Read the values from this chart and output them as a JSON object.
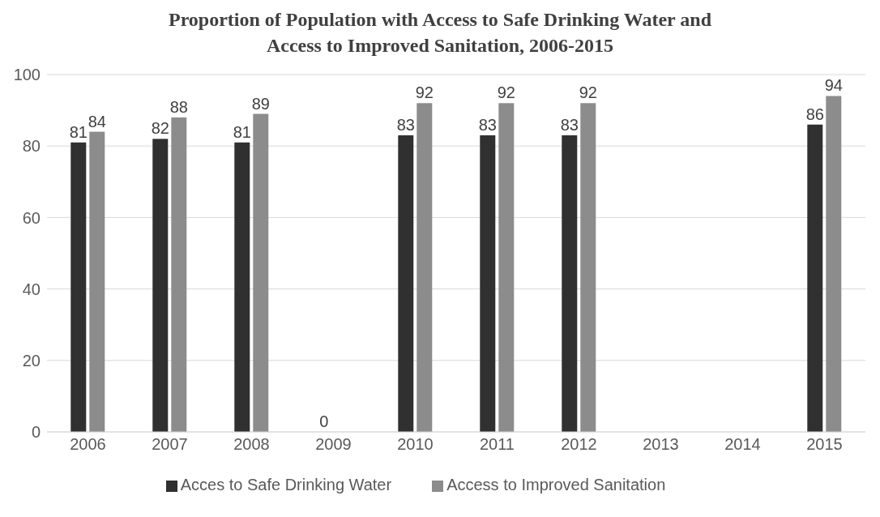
{
  "chart_data": {
    "type": "bar",
    "title": "Proportion of Population with Access to Safe Drinking Water and Access to Improved Sanitation, 2006-2015",
    "categories": [
      "2006",
      "2007",
      "2008",
      "2009",
      "2010",
      "2011",
      "2012",
      "2013",
      "2014",
      "2015"
    ],
    "series": [
      {
        "name": "Acces to Safe Drinking Water",
        "color": "#303030",
        "values": [
          81,
          82,
          81,
          0,
          83,
          83,
          83,
          null,
          null,
          86
        ]
      },
      {
        "name": "Access to Improved Sanitation",
        "color": "#8c8c8c",
        "values": [
          84,
          88,
          89,
          null,
          92,
          92,
          92,
          null,
          null,
          94
        ]
      }
    ],
    "ylim": [
      0,
      100
    ],
    "yticks": [
      0,
      20,
      40,
      60,
      80,
      100
    ],
    "grid": "y",
    "legend": "bottom",
    "data_labels": true
  }
}
